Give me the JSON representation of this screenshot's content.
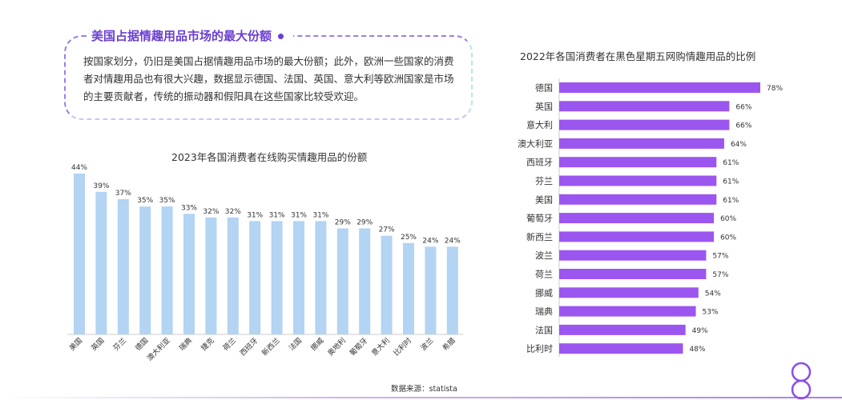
{
  "info": {
    "title": "美国占据情趣用品市场的最大份额",
    "body": "按国家划分，仍旧是美国占据情趣用品市场的最大份额；此外，欧洲一些国家的消费者对情趣用品也有很大兴趣，数据显示德国、法国、英国、意大利等欧洲国家是市场的主要贡献者，传统的振动器和假阳具在这些国家比较受欢迎。"
  },
  "source": "数据来源：statista",
  "colors": {
    "bar_left": "#b3d4f2",
    "bar_right": "#9b56f0",
    "accent": "#6b3fd1"
  },
  "logo_icon": "infinity-eight-icon",
  "chart_data": [
    {
      "type": "bar",
      "orientation": "vertical",
      "title": "2023年各国消费者在线购买情趣用品的份额",
      "categories": [
        "美国",
        "英国",
        "芬兰",
        "德国",
        "澳大利亚",
        "瑞典",
        "捷克",
        "荷兰",
        "西班牙",
        "新西兰",
        "法国",
        "挪威",
        "奥地利",
        "葡萄牙",
        "意大利",
        "比利时",
        "波兰",
        "希腊"
      ],
      "values": [
        44,
        39,
        37,
        35,
        35,
        33,
        32,
        32,
        31,
        31,
        31,
        31,
        29,
        29,
        27,
        25,
        24,
        24
      ],
      "value_labels": [
        "44%",
        "39%",
        "37%",
        "35%",
        "35%",
        "33%",
        "32%",
        "32%",
        "31%",
        "31%",
        "31%",
        "31%",
        "29%",
        "29%",
        "27%",
        "25%",
        "24%",
        "24%"
      ],
      "unit": "%",
      "ylim": [
        0,
        44
      ]
    },
    {
      "type": "bar",
      "orientation": "horizontal",
      "title": "2022年各国消费者在黑色星期五网购情趣用品的比例",
      "categories": [
        "德国",
        "英国",
        "意大利",
        "澳大利亚",
        "西班牙",
        "芬兰",
        "美国",
        "葡萄牙",
        "新西兰",
        "波兰",
        "荷兰",
        "挪威",
        "瑞典",
        "法国",
        "比利时"
      ],
      "values": [
        78,
        66,
        66,
        64,
        61,
        61,
        61,
        60,
        60,
        57,
        57,
        54,
        53,
        49,
        48
      ],
      "value_labels": [
        "78%",
        "66%",
        "66%",
        "64%",
        "61%",
        "61%",
        "61%",
        "60%",
        "60%",
        "57%",
        "57%",
        "54%",
        "53%",
        "49%",
        "48%"
      ],
      "unit": "%",
      "xlim": [
        0,
        78
      ]
    }
  ]
}
